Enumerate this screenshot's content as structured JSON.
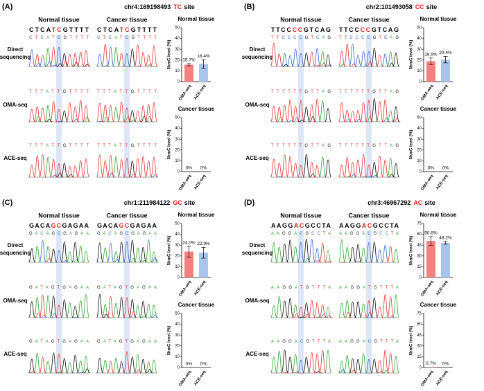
{
  "panels": [
    {
      "label": "(A)",
      "locus": "chr4:169198493",
      "motif": "TC",
      "site": "site",
      "direct_label": [
        "Direct",
        "sequencing"
      ],
      "oma_label": "OMA-seq",
      "ace_label": "ACE-seq",
      "columns": [
        {
          "header": "Normal tissue",
          "seq": [
            "CTCA",
            "TC",
            "GTTTT"
          ],
          "direct_calls": "CTCATCGTTTT",
          "oma_calls": "TTTATTGTTTT",
          "ace_calls": "TTTATTGTTTT"
        },
        {
          "header": "Cancer tissue",
          "seq": [
            "CTCA",
            "TC",
            "GTTTT"
          ],
          "direct_calls": "CTCATCGTTTT",
          "oma_calls": "TTTATTGTTTT",
          "ace_calls": "TTTATTGTTTT"
        }
      ]
    },
    {
      "label": "(B)",
      "locus": "chr2:101493058",
      "motif": "CC",
      "site": "site",
      "direct_label": [
        "Direct",
        "sequencing"
      ],
      "oma_label": "OMA-seq",
      "ace_label": "ACE-seq",
      "columns": [
        {
          "header": "Normal tissue",
          "seq": [
            "TTCC",
            "CC",
            "GTCAG"
          ],
          "direct_calls": "TTCCCCGTCAG",
          "oma_calls": "TTTTTTGTTAG",
          "ace_calls": "TTTTTTGTTAG"
        },
        {
          "header": "Cancer tissue",
          "seq": [
            "TTCC",
            "CC",
            "GTCAG"
          ],
          "direct_calls": "TTCCCCGTCAG",
          "oma_calls": "TTTTTTGTTAG",
          "ace_calls": "TTTTTTGTTAG"
        }
      ]
    },
    {
      "label": "(C)",
      "locus": "chr1:211984122",
      "motif": "GC",
      "site": "site",
      "direct_label": [
        "Direct",
        "sequencing"
      ],
      "oma_label": "OMA-seq",
      "ace_label": "ACE-seq",
      "columns": [
        {
          "header": "Normal tissue",
          "seq": [
            "GACA",
            "GC",
            "GAGAA"
          ],
          "direct_calls": "GACAGCGAGAA",
          "oma_calls": "GATAGTGAGAA",
          "ace_calls": "GATAGTGAGAA"
        },
        {
          "header": "Cancer tissue",
          "seq": [
            "GACA",
            "GC",
            "GAGAA"
          ],
          "direct_calls": "GACAGCGAGAA",
          "oma_calls": "GATAGTGAGAA",
          "ace_calls": "GATAGTGAGAA"
        }
      ]
    },
    {
      "label": "(D)",
      "locus": "chr3:46967292",
      "motif": "AC",
      "site": "site",
      "direct_label": [
        "Direct",
        "sequencing"
      ],
      "oma_label": "OMA-seq",
      "ace_label": "ACE-seq",
      "columns": [
        {
          "header": "Normal tissue",
          "seq": [
            "AAGG",
            "AC",
            "GCCTA"
          ],
          "direct_calls": "AAGGACGCCTA",
          "oma_calls": "AAGGATGTTTA",
          "ace_calls": "AAGGACGTTTA"
        },
        {
          "header": "Cancer tissue",
          "seq": [
            "AAGG",
            "AC",
            "GCCTA"
          ],
          "direct_calls": "AAGGACGCCTA",
          "oma_calls": "AAGGATGTTTA",
          "ace_calls": "AAGGACGTTTA"
        }
      ]
    }
  ],
  "chart_data": [
    {
      "type": "bar",
      "title": "Normal tissue",
      "y_label": "5hmC level (%)",
      "categories": [
        "OMA-seq",
        "ACE-seq"
      ],
      "values": [
        15.7,
        16.4
      ],
      "value_labels": [
        "15.7%",
        "16.4%"
      ],
      "errors": [
        1,
        4
      ],
      "colors": [
        "#f67f7f",
        "#a9c5ee"
      ],
      "ylim": [
        0,
        50
      ],
      "yticks": [
        0,
        10,
        20,
        30,
        40,
        50
      ]
    },
    {
      "type": "bar",
      "title": "Cancer tissue",
      "y_label": "5hmC level (%)",
      "categories": [
        "OMA-seq",
        "ACE-seq"
      ],
      "values": [
        0,
        0
      ],
      "value_labels": [
        "0%",
        "0%"
      ],
      "colors": [
        "#f67f7f",
        "#a9c5ee"
      ],
      "ylim": [
        0,
        50
      ],
      "yticks": [
        0,
        10,
        20,
        30,
        40,
        50
      ]
    },
    {
      "type": "bar",
      "title": "Normal tissue",
      "y_label": "5hmC level (%)",
      "categories": [
        "OMA-seq",
        "ACE-seq"
      ],
      "values": [
        18.9,
        20.4
      ],
      "value_labels": [
        "18.9%",
        "20.4%"
      ],
      "errors": [
        3,
        3
      ],
      "colors": [
        "#f67f7f",
        "#a9c5ee"
      ],
      "ylim": [
        0,
        50
      ],
      "yticks": [
        0,
        10,
        20,
        30,
        40,
        50
      ]
    },
    {
      "type": "bar",
      "title": "Cancer tissue",
      "y_label": "5hmC level (%)",
      "categories": [
        "OMA-seq",
        "ACE-seq"
      ],
      "values": [
        0,
        0
      ],
      "value_labels": [
        "0%",
        "0%"
      ],
      "colors": [
        "#f67f7f",
        "#a9c5ee"
      ],
      "ylim": [
        0,
        50
      ],
      "yticks": [
        0,
        10,
        20,
        30,
        40,
        50
      ]
    },
    {
      "type": "bar",
      "title": "Normal tissue",
      "y_label": "5hmC level (%)",
      "categories": [
        "OMA-seq",
        "ACE-seq"
      ],
      "values": [
        24.0,
        22.9
      ],
      "value_labels": [
        "24.0%",
        "22.9%"
      ],
      "errors": [
        5,
        5
      ],
      "colors": [
        "#f67f7f",
        "#a9c5ee"
      ],
      "ylim": [
        0,
        50
      ],
      "yticks": [
        0,
        10,
        20,
        30,
        40,
        50
      ]
    },
    {
      "type": "bar",
      "title": "Cancer tissue",
      "y_label": "5hmC level (%)",
      "categories": [
        "OMA-seq",
        "ACE-seq"
      ],
      "values": [
        0,
        0
      ],
      "value_labels": [
        "0%",
        "0%"
      ],
      "colors": [
        "#f67f7f",
        "#a9c5ee"
      ],
      "ylim": [
        0,
        50
      ],
      "yticks": [
        0,
        10,
        20,
        30,
        40,
        50
      ]
    },
    {
      "type": "bar",
      "title": "Normal tissue",
      "y_label": "5hmC level (%)",
      "categories": [
        "OMA-seq",
        "ACE-seq"
      ],
      "values": [
        50.8,
        48.2
      ],
      "value_labels": [
        "50.8%",
        "48.2%"
      ],
      "errors": [
        6,
        2
      ],
      "colors": [
        "#f67f7f",
        "#a9c5ee"
      ],
      "ylim": [
        0,
        75
      ],
      "yticks": [
        0,
        15,
        30,
        45,
        60,
        75
      ]
    },
    {
      "type": "bar",
      "title": "Cancer tissue",
      "y_label": "5hmC level (%)",
      "categories": [
        "OMA-seq",
        "ACE-seq"
      ],
      "values": [
        0.7,
        0
      ],
      "value_labels": [
        "0.7%",
        "0%"
      ],
      "colors": [
        "#f67f7f",
        "#a9c5ee"
      ],
      "ylim": [
        0,
        75
      ],
      "yticks": [
        0,
        15,
        30,
        45,
        60,
        75
      ]
    }
  ]
}
